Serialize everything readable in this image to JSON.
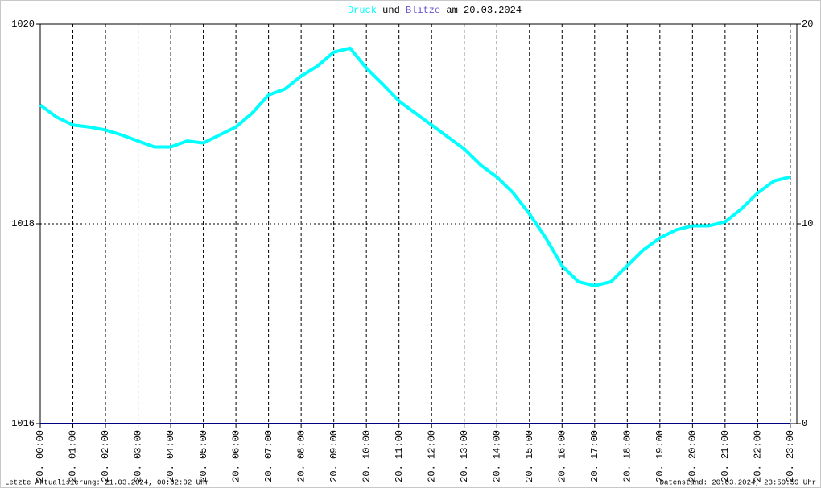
{
  "chart_data": {
    "type": "line",
    "title_parts": [
      "und",
      "am 20.03.2024"
    ],
    "x": [
      0,
      0.5,
      1,
      1.5,
      2,
      2.5,
      3,
      3.5,
      4,
      4.5,
      5,
      5.5,
      6,
      6.5,
      7,
      7.5,
      8,
      8.5,
      9,
      9.5,
      10,
      10.5,
      11,
      11.5,
      12,
      12.5,
      13,
      13.5,
      14,
      14.5,
      15,
      15.5,
      16,
      16.5,
      17,
      17.5,
      18,
      18.5,
      19,
      19.5,
      20,
      20.5,
      21,
      21.5,
      22,
      22.5,
      23
    ],
    "xlim": [
      0,
      23.2
    ],
    "xticks": [
      {
        "value": 0,
        "label": "20. 00:00"
      },
      {
        "value": 1,
        "label": "20. 01:00"
      },
      {
        "value": 2,
        "label": "20. 02:00"
      },
      {
        "value": 3,
        "label": "20. 03:00"
      },
      {
        "value": 4,
        "label": "20. 04:00"
      },
      {
        "value": 5,
        "label": "20. 05:00"
      },
      {
        "value": 6,
        "label": "20. 06:00"
      },
      {
        "value": 7,
        "label": "20. 07:00"
      },
      {
        "value": 8,
        "label": "20. 08:00"
      },
      {
        "value": 9,
        "label": "20. 09:00"
      },
      {
        "value": 10,
        "label": "20. 10:00"
      },
      {
        "value": 11,
        "label": "20. 11:00"
      },
      {
        "value": 12,
        "label": "20. 12:00"
      },
      {
        "value": 13,
        "label": "20. 13:00"
      },
      {
        "value": 14,
        "label": "20. 14:00"
      },
      {
        "value": 15,
        "label": "20. 15:00"
      },
      {
        "value": 16,
        "label": "20. 16:00"
      },
      {
        "value": 17,
        "label": "20. 17:00"
      },
      {
        "value": 18,
        "label": "20. 18:00"
      },
      {
        "value": 19,
        "label": "20. 19:00"
      },
      {
        "value": 20,
        "label": "20. 20:00"
      },
      {
        "value": 21,
        "label": "20. 21:00"
      },
      {
        "value": 22,
        "label": "20. 22:00"
      },
      {
        "value": 23,
        "label": "20. 23:00"
      }
    ],
    "ylim": [
      1016,
      1020
    ],
    "yticks": [
      1016,
      1018,
      1020
    ],
    "y2lim": [
      0,
      20
    ],
    "y2ticks": [
      0,
      10,
      20
    ],
    "grid": true,
    "series": [
      {
        "name": "Druck",
        "color": "#00ffff",
        "values": [
          1019.19,
          1019.07,
          1018.99,
          1018.97,
          1018.94,
          1018.89,
          1018.83,
          1018.77,
          1018.77,
          1018.83,
          1018.81,
          1018.89,
          1018.97,
          1019.11,
          1019.29,
          1019.35,
          1019.48,
          1019.58,
          1019.72,
          1019.76,
          1019.56,
          1019.4,
          1019.23,
          1019.11,
          1018.99,
          1018.87,
          1018.75,
          1018.59,
          1018.47,
          1018.31,
          1018.1,
          1017.86,
          1017.58,
          1017.42,
          1017.38,
          1017.42,
          1017.58,
          1017.74,
          1017.86,
          1017.94,
          1017.98,
          1017.98,
          1018.02,
          1018.15,
          1018.31,
          1018.43,
          1018.47
        ]
      },
      {
        "name": "Blitze",
        "color": "#000080",
        "axis": "y2",
        "values": [
          0,
          0,
          0,
          0,
          0,
          0,
          0,
          0,
          0,
          0,
          0,
          0,
          0,
          0,
          0,
          0,
          0,
          0,
          0,
          0,
          0,
          0,
          0,
          0,
          0,
          0,
          0,
          0,
          0,
          0,
          0,
          0,
          0,
          0,
          0,
          0,
          0,
          0,
          0,
          0,
          0,
          0,
          0,
          0,
          0,
          0,
          0
        ]
      }
    ],
    "footer_left": "Letzte Aktualisierung: 21.03.2024, 00:02:02 Uhr",
    "footer_right": "Datenstand: 20.03.2024, 23:59:59 Uhr"
  }
}
